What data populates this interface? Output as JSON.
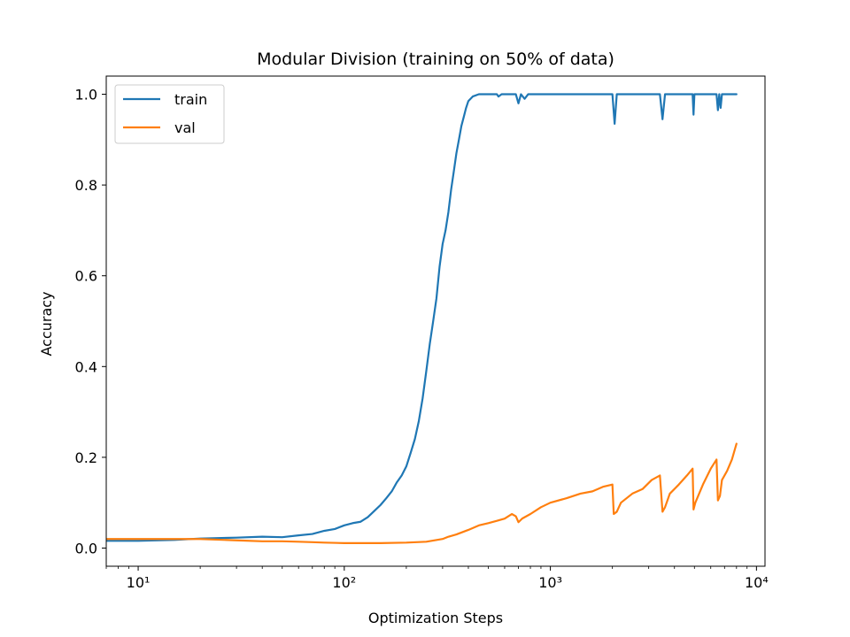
{
  "chart_data": {
    "type": "line",
    "title": "Modular Division (training on 50% of data)",
    "xlabel": "Optimization Steps",
    "ylabel": "Accuracy",
    "xscale": "log",
    "xlim": [
      7,
      11000
    ],
    "ylim": [
      -0.04,
      1.04
    ],
    "x_ticks": [
      {
        "value": 10,
        "label": "10¹"
      },
      {
        "value": 100,
        "label": "10²"
      },
      {
        "value": 1000,
        "label": "10³"
      },
      {
        "value": 10000,
        "label": "10⁴"
      }
    ],
    "y_ticks": [
      {
        "value": 0.0,
        "label": "0.0"
      },
      {
        "value": 0.2,
        "label": "0.2"
      },
      {
        "value": 0.4,
        "label": "0.4"
      },
      {
        "value": 0.6,
        "label": "0.6"
      },
      {
        "value": 0.8,
        "label": "0.8"
      },
      {
        "value": 1.0,
        "label": "1.0"
      }
    ],
    "grid": false,
    "legend_position": "upper-left",
    "series": [
      {
        "name": "train",
        "color": "#1f77b4",
        "points": [
          [
            7,
            0.016
          ],
          [
            10,
            0.016
          ],
          [
            15,
            0.018
          ],
          [
            20,
            0.021
          ],
          [
            30,
            0.023
          ],
          [
            40,
            0.025
          ],
          [
            50,
            0.024
          ],
          [
            60,
            0.028
          ],
          [
            70,
            0.031
          ],
          [
            80,
            0.038
          ],
          [
            90,
            0.042
          ],
          [
            100,
            0.05
          ],
          [
            110,
            0.055
          ],
          [
            120,
            0.058
          ],
          [
            130,
            0.068
          ],
          [
            140,
            0.082
          ],
          [
            150,
            0.095
          ],
          [
            160,
            0.11
          ],
          [
            170,
            0.125
          ],
          [
            180,
            0.145
          ],
          [
            190,
            0.16
          ],
          [
            200,
            0.18
          ],
          [
            210,
            0.21
          ],
          [
            220,
            0.24
          ],
          [
            230,
            0.28
          ],
          [
            240,
            0.33
          ],
          [
            250,
            0.39
          ],
          [
            260,
            0.45
          ],
          [
            270,
            0.5
          ],
          [
            280,
            0.55
          ],
          [
            290,
            0.62
          ],
          [
            300,
            0.67
          ],
          [
            310,
            0.7
          ],
          [
            320,
            0.74
          ],
          [
            330,
            0.79
          ],
          [
            340,
            0.83
          ],
          [
            350,
            0.87
          ],
          [
            360,
            0.9
          ],
          [
            370,
            0.93
          ],
          [
            380,
            0.95
          ],
          [
            390,
            0.97
          ],
          [
            400,
            0.985
          ],
          [
            420,
            0.995
          ],
          [
            450,
            1.0
          ],
          [
            500,
            1.0
          ],
          [
            550,
            1.0
          ],
          [
            560,
            0.995
          ],
          [
            580,
            1.0
          ],
          [
            650,
            1.0
          ],
          [
            680,
            1.0
          ],
          [
            700,
            0.98
          ],
          [
            720,
            1.0
          ],
          [
            750,
            0.99
          ],
          [
            780,
            1.0
          ],
          [
            900,
            1.0
          ],
          [
            1200,
            1.0
          ],
          [
            1500,
            1.0
          ],
          [
            1800,
            1.0
          ],
          [
            2000,
            1.0
          ],
          [
            2050,
            0.935
          ],
          [
            2100,
            1.0
          ],
          [
            2500,
            1.0
          ],
          [
            3000,
            1.0
          ],
          [
            3400,
            1.0
          ],
          [
            3500,
            0.945
          ],
          [
            3600,
            1.0
          ],
          [
            4500,
            1.0
          ],
          [
            4900,
            1.0
          ],
          [
            4950,
            0.955
          ],
          [
            5000,
            1.0
          ],
          [
            6000,
            1.0
          ],
          [
            6400,
            1.0
          ],
          [
            6500,
            0.965
          ],
          [
            6600,
            1.0
          ],
          [
            6700,
            0.97
          ],
          [
            6800,
            1.0
          ],
          [
            7200,
            1.0
          ],
          [
            8000,
            1.0
          ]
        ]
      },
      {
        "name": "val",
        "color": "#ff7f0e",
        "points": [
          [
            7,
            0.02
          ],
          [
            10,
            0.02
          ],
          [
            15,
            0.02
          ],
          [
            20,
            0.02
          ],
          [
            30,
            0.017
          ],
          [
            40,
            0.015
          ],
          [
            50,
            0.015
          ],
          [
            60,
            0.014
          ],
          [
            70,
            0.013
          ],
          [
            80,
            0.012
          ],
          [
            100,
            0.011
          ],
          [
            120,
            0.011
          ],
          [
            150,
            0.011
          ],
          [
            200,
            0.012
          ],
          [
            250,
            0.014
          ],
          [
            300,
            0.02
          ],
          [
            320,
            0.025
          ],
          [
            350,
            0.03
          ],
          [
            400,
            0.04
          ],
          [
            450,
            0.05
          ],
          [
            500,
            0.055
          ],
          [
            550,
            0.06
          ],
          [
            600,
            0.065
          ],
          [
            650,
            0.075
          ],
          [
            680,
            0.07
          ],
          [
            700,
            0.057
          ],
          [
            730,
            0.065
          ],
          [
            800,
            0.075
          ],
          [
            900,
            0.09
          ],
          [
            1000,
            0.1
          ],
          [
            1200,
            0.11
          ],
          [
            1400,
            0.12
          ],
          [
            1600,
            0.125
          ],
          [
            1800,
            0.135
          ],
          [
            2000,
            0.14
          ],
          [
            2030,
            0.075
          ],
          [
            2100,
            0.08
          ],
          [
            2200,
            0.1
          ],
          [
            2500,
            0.12
          ],
          [
            2800,
            0.13
          ],
          [
            3100,
            0.15
          ],
          [
            3400,
            0.16
          ],
          [
            3500,
            0.08
          ],
          [
            3600,
            0.09
          ],
          [
            3800,
            0.12
          ],
          [
            4200,
            0.14
          ],
          [
            4600,
            0.16
          ],
          [
            4900,
            0.175
          ],
          [
            4950,
            0.085
          ],
          [
            5050,
            0.1
          ],
          [
            5500,
            0.14
          ],
          [
            6000,
            0.175
          ],
          [
            6400,
            0.195
          ],
          [
            6500,
            0.105
          ],
          [
            6650,
            0.115
          ],
          [
            6800,
            0.15
          ],
          [
            7200,
            0.17
          ],
          [
            7600,
            0.195
          ],
          [
            8000,
            0.23
          ]
        ]
      }
    ]
  }
}
